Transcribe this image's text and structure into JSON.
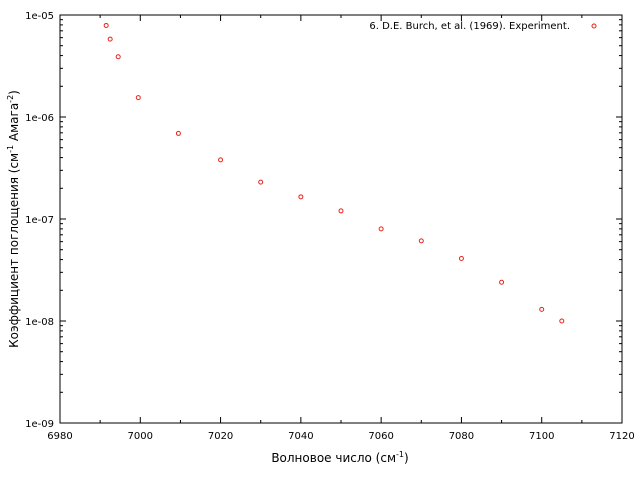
{
  "chart_data": {
    "type": "scatter",
    "xlabel": "Волновое число (см",
    "xlabel_sup": "-1",
    "xlabel_end": ")",
    "ylabel": "Коэффициент поглощения (см",
    "ylabel_sup1": "-1",
    "ylabel_mid": " Амага",
    "ylabel_sup2": "-2",
    "ylabel_end": ")",
    "xlim": [
      6980,
      7120
    ],
    "ylim": [
      1e-09,
      1e-05
    ],
    "yscale": "log",
    "grid": false,
    "legend_position": "top-right",
    "x_ticks": [
      6980,
      7000,
      7020,
      7040,
      7060,
      7080,
      7100,
      7120
    ],
    "x_tick_labels": [
      "6980",
      "7000",
      "7020",
      "7040",
      "7060",
      "7080",
      "7100",
      "7120"
    ],
    "y_ticks": [
      1e-09,
      1e-08,
      1e-07,
      1e-06,
      1e-05
    ],
    "y_tick_labels": [
      "1e-09",
      "1e-08",
      "1e-07",
      "1e-06",
      "1e-05"
    ],
    "series": [
      {
        "name": "6. D.E. Burch, et al. (1969). Experiment.",
        "color": "#e8231c",
        "marker": "open-circle",
        "points": [
          {
            "x": 6991.5,
            "y": 7.9e-06
          },
          {
            "x": 6992.5,
            "y": 5.8e-06
          },
          {
            "x": 6994.5,
            "y": 3.9e-06
          },
          {
            "x": 6999.5,
            "y": 1.55e-06
          },
          {
            "x": 7009.5,
            "y": 6.9e-07
          },
          {
            "x": 7020,
            "y": 3.8e-07
          },
          {
            "x": 7030,
            "y": 2.3e-07
          },
          {
            "x": 7040,
            "y": 1.65e-07
          },
          {
            "x": 7050,
            "y": 1.2e-07
          },
          {
            "x": 7060,
            "y": 8e-08
          },
          {
            "x": 7070,
            "y": 6.1e-08
          },
          {
            "x": 7080,
            "y": 4.1e-08
          },
          {
            "x": 7090,
            "y": 2.4e-08
          },
          {
            "x": 7100,
            "y": 1.3e-08
          },
          {
            "x": 7105,
            "y": 1e-08
          }
        ]
      }
    ]
  }
}
